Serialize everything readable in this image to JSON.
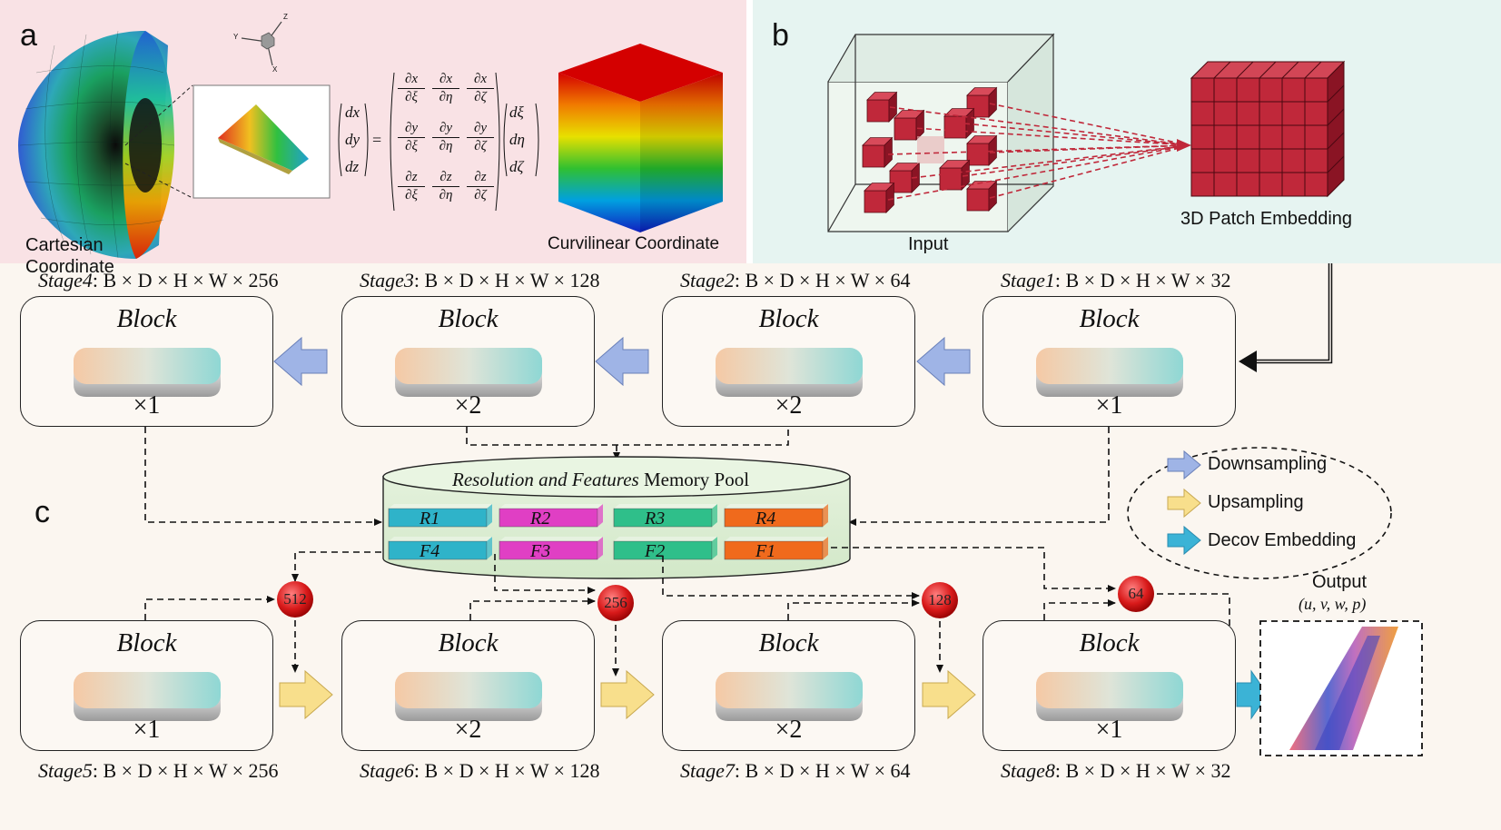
{
  "panels": {
    "a": {
      "label": "a",
      "cartesian_label": "Cartesian Coordinate",
      "curvilinear_label": "Curvilinear Coordinate",
      "axis_labels": {
        "z": "Z",
        "y": "Y",
        "x": "X"
      },
      "colors": {
        "background": "#f9e2e5"
      }
    },
    "b": {
      "label": "b",
      "input_label": "Input",
      "patch_label": "3D Patch Embedding",
      "colors": {
        "background": "#e6f4f1",
        "cube": "#c0283a"
      }
    },
    "c": {
      "label": "c",
      "colors": {
        "background": "#fbf6f0"
      }
    }
  },
  "equation": {
    "lhs": [
      "dx",
      "dy",
      "dz"
    ],
    "jacobian": [
      [
        "∂x/∂ξ",
        "∂x/∂η",
        "∂x/∂ζ"
      ],
      [
        "∂y/∂ξ",
        "∂y/∂η",
        "∂y/∂ζ"
      ],
      [
        "∂z/∂ξ",
        "∂z/∂η",
        "∂z/∂ζ"
      ]
    ],
    "rhs": [
      "dξ",
      "dη",
      "dζ"
    ]
  },
  "encoder": {
    "stages": [
      {
        "name": "Stage1",
        "dims": ": B × D × H × W × 32",
        "title": "Block",
        "mult": "×1"
      },
      {
        "name": "Stage2",
        "dims": ": B × D × H × W × 64",
        "title": "Block",
        "mult": "×2"
      },
      {
        "name": "Stage3",
        "dims": ": B × D × H × W × 128",
        "title": "Block",
        "mult": "×2"
      },
      {
        "name": "Stage4",
        "dims": ": B × D × H × W × 256",
        "title": "Block",
        "mult": "×1"
      }
    ]
  },
  "decoder": {
    "stages": [
      {
        "name": "Stage5",
        "dims": ": B × D × H × W × 256",
        "title": "Block",
        "mult": "×1",
        "ball": "512"
      },
      {
        "name": "Stage6",
        "dims": ": B × D × H × W × 128",
        "title": "Block",
        "mult": "×2",
        "ball": "256"
      },
      {
        "name": "Stage7",
        "dims": ": B × D × H × W × 64",
        "title": "Block",
        "mult": "×2",
        "ball": "128"
      },
      {
        "name": "Stage8",
        "dims": ": B × D × H × W × 32",
        "title": "Block",
        "mult": "×1",
        "ball": "64"
      }
    ]
  },
  "memory_pool": {
    "title_italic": "Resolution and Features",
    "title_plain": "Memory Pool",
    "row_r": [
      "R1",
      "R2",
      "R3",
      "R4"
    ],
    "row_f": [
      "F4",
      "F3",
      "F2",
      "F1"
    ],
    "colors": [
      "#2fb3c9",
      "#e03fc4",
      "#2fbf8a",
      "#f06a1c"
    ]
  },
  "legend": {
    "items": [
      {
        "label": "Downsampling",
        "color": "#9fb4e6"
      },
      {
        "label": "Upsampling",
        "color": "#f8df8c"
      },
      {
        "label": "Decov Embedding",
        "color": "#3bb3d6"
      }
    ]
  },
  "output": {
    "title": "Output",
    "vars": "(u, v, w, p)"
  }
}
